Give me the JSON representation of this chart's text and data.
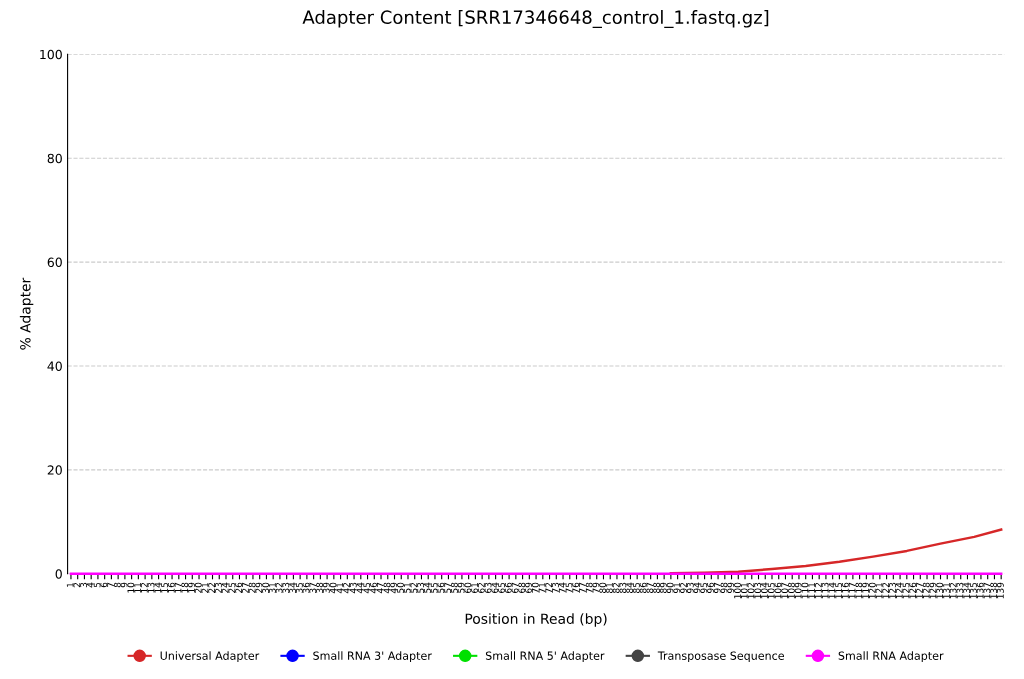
{
  "chart_data": {
    "type": "line",
    "title": "Adapter Content [SRR17346648_control_1.fastq.gz]",
    "xlabel": "Position in Read (bp)",
    "ylabel": "% Adapter",
    "categories": [
      "1",
      "2",
      "3",
      "4",
      "5",
      "6",
      "7",
      "8",
      "9",
      "10",
      "11",
      "12",
      "13",
      "14",
      "15",
      "16",
      "17",
      "18",
      "19",
      "20",
      "21",
      "22",
      "23",
      "24",
      "25",
      "26",
      "27",
      "28",
      "29",
      "30",
      "31",
      "32",
      "33",
      "34",
      "35",
      "36",
      "37",
      "38",
      "39",
      "40",
      "41",
      "42",
      "43",
      "44",
      "45",
      "46",
      "47",
      "48",
      "49",
      "50",
      "51",
      "52",
      "53",
      "54",
      "55",
      "56",
      "57",
      "58",
      "59",
      "60",
      "61",
      "62",
      "63",
      "64",
      "65",
      "66",
      "67",
      "68",
      "69",
      "70",
      "71",
      "72",
      "73",
      "74",
      "75",
      "76",
      "77",
      "78",
      "79",
      "80",
      "81",
      "82",
      "83",
      "84",
      "85",
      "86",
      "87",
      "88",
      "89",
      "90",
      "91",
      "92",
      "93",
      "94",
      "95",
      "96",
      "97",
      "98",
      "99",
      "100",
      "101",
      "102",
      "103",
      "104",
      "105",
      "106",
      "107",
      "108",
      "109",
      "110",
      "111",
      "112",
      "113",
      "114",
      "115",
      "116",
      "117",
      "118",
      "119",
      "120",
      "121",
      "122",
      "123",
      "124",
      "125",
      "126",
      "127",
      "128",
      "129",
      "130",
      "131",
      "132",
      "133",
      "134",
      "135",
      "136",
      "137",
      "138",
      "139"
    ],
    "series": [
      {
        "name": "Universal Adapter",
        "color": "#d62728",
        "x": [
          "90",
          "95",
          "100",
          "105",
          "110",
          "115",
          "120",
          "125",
          "130",
          "135",
          "139"
        ],
        "values": [
          0.1,
          0.2,
          0.4,
          0.9,
          1.5,
          2.3,
          3.3,
          4.4,
          5.8,
          7.1,
          8.5
        ]
      },
      {
        "name": "Small RNA 3' Adapter",
        "color": "#0000ff",
        "x": [
          "1",
          "139"
        ],
        "values": [
          null,
          null
        ]
      },
      {
        "name": "Small RNA 5' Adapter",
        "color": "#00e000",
        "x": [
          "1",
          "139"
        ],
        "values": [
          null,
          null
        ]
      },
      {
        "name": "Transposase Sequence",
        "color": "#444444",
        "x": [
          "1",
          "139"
        ],
        "values": [
          null,
          null
        ]
      },
      {
        "name": "Small RNA Adapter",
        "color": "#ff00ff",
        "x": [
          "1",
          "139"
        ],
        "values": [
          0,
          0
        ]
      }
    ],
    "ylim": [
      0,
      100
    ],
    "yticks": [
      0,
      20,
      40,
      60,
      80,
      100
    ],
    "grid": "y",
    "legend": "bottom",
    "marker": "none",
    "line_style": "solid"
  }
}
